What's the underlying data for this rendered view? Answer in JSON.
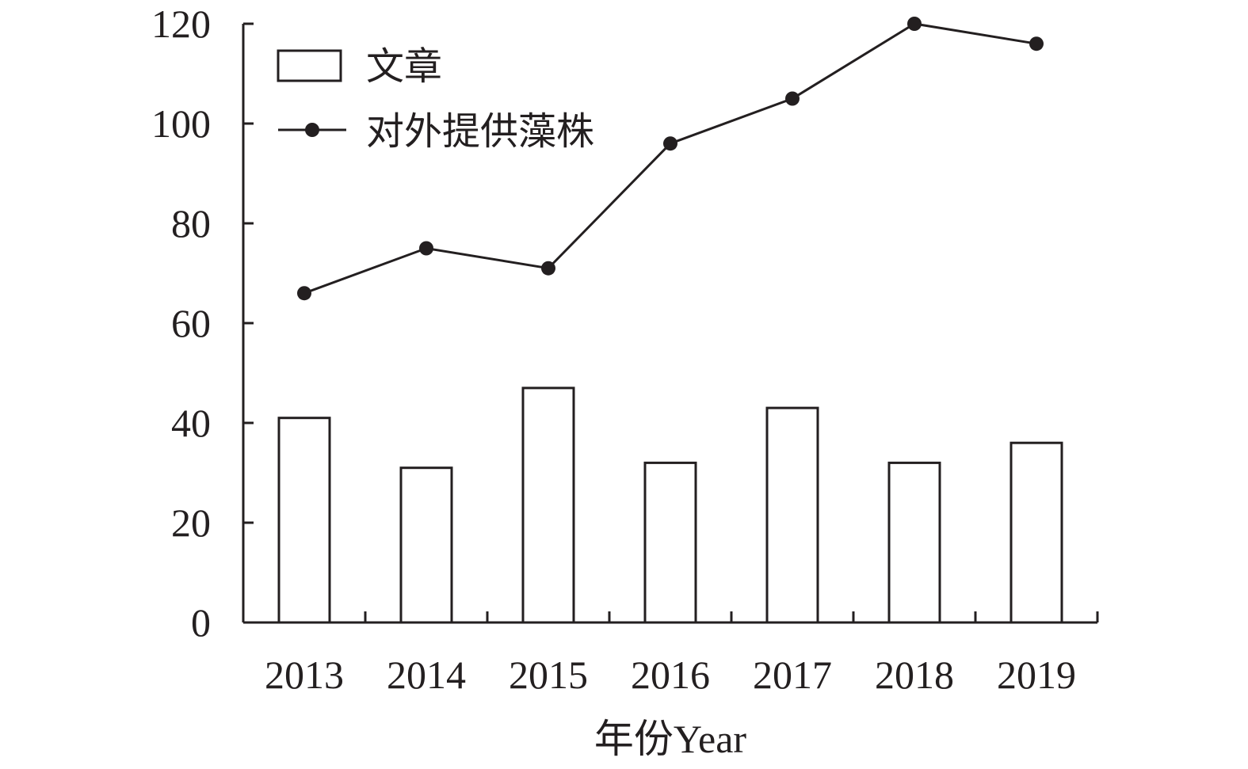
{
  "chart_data": {
    "type": "bar",
    "categories": [
      "2013",
      "2014",
      "2015",
      "2016",
      "2017",
      "2018",
      "2019"
    ],
    "series": [
      {
        "name": "文章",
        "type": "bar",
        "values": [
          41,
          31,
          47,
          32,
          43,
          32,
          36
        ]
      },
      {
        "name": "对外提供藻株",
        "type": "line",
        "values": [
          66,
          75,
          71,
          96,
          105,
          120,
          116
        ]
      }
    ],
    "xlabel": "年份Year",
    "ylabel": "",
    "ylim": [
      0,
      120
    ],
    "yticks": [
      "0",
      "20",
      "40",
      "60",
      "80",
      "100",
      "120"
    ],
    "grid": false,
    "legend_position": "top-left",
    "colors": {
      "ink": "#231f20",
      "bar_fill": "#ffffff"
    }
  }
}
